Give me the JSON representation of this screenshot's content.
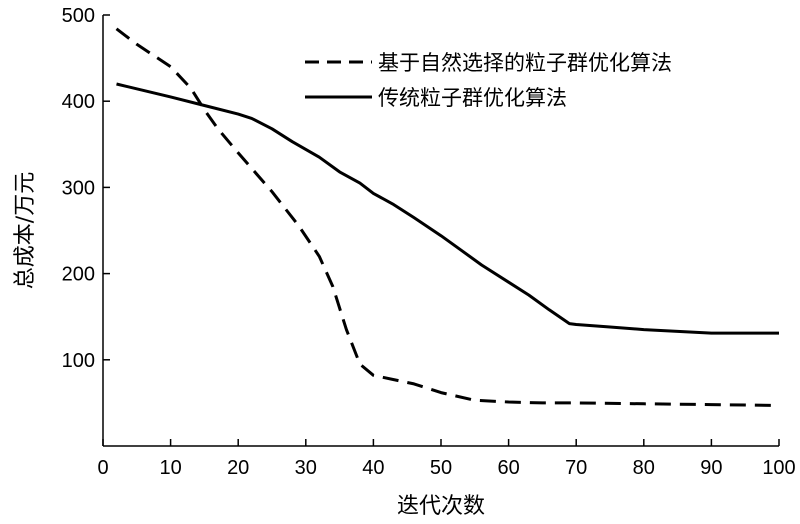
{
  "chart_data": {
    "type": "line",
    "xlabel": "迭代次数",
    "ylabel": "总成本/万元",
    "xlim": [
      0,
      100
    ],
    "ylim": [
      0,
      500
    ],
    "x_ticks": [
      0,
      10,
      20,
      30,
      40,
      50,
      60,
      70,
      80,
      90,
      100
    ],
    "y_ticks": [
      100,
      200,
      300,
      400,
      500
    ],
    "grid": false,
    "legend_position": "top-right",
    "series": [
      {
        "name": "基于自然选择的粒子群优化算法",
        "style": "dashed",
        "color": "#000000",
        "points": [
          [
            2,
            484
          ],
          [
            5,
            466
          ],
          [
            10,
            440
          ],
          [
            13,
            415
          ],
          [
            15,
            390
          ],
          [
            17,
            368
          ],
          [
            20,
            340
          ],
          [
            25,
            295
          ],
          [
            29,
            255
          ],
          [
            32,
            220
          ],
          [
            34,
            185
          ],
          [
            36,
            135
          ],
          [
            38,
            95
          ],
          [
            40,
            82
          ],
          [
            43,
            77
          ],
          [
            46,
            72
          ],
          [
            50,
            62
          ],
          [
            55,
            53
          ],
          [
            60,
            51
          ],
          [
            65,
            50
          ],
          [
            70,
            50
          ],
          [
            80,
            49
          ],
          [
            90,
            48
          ],
          [
            100,
            47
          ]
        ]
      },
      {
        "name": "传统粒子群优化算法",
        "style": "solid",
        "color": "#000000",
        "points": [
          [
            2,
            420
          ],
          [
            10,
            405
          ],
          [
            15,
            395
          ],
          [
            20,
            385
          ],
          [
            22,
            380
          ],
          [
            25,
            368
          ],
          [
            28,
            353
          ],
          [
            32,
            335
          ],
          [
            35,
            318
          ],
          [
            38,
            305
          ],
          [
            40,
            293
          ],
          [
            43,
            280
          ],
          [
            46,
            265
          ],
          [
            50,
            244
          ],
          [
            53,
            227
          ],
          [
            56,
            210
          ],
          [
            60,
            190
          ],
          [
            63,
            175
          ],
          [
            66,
            158
          ],
          [
            69,
            142
          ],
          [
            70,
            141
          ],
          [
            75,
            138
          ],
          [
            80,
            135
          ],
          [
            90,
            131
          ],
          [
            100,
            131
          ]
        ]
      }
    ]
  }
}
